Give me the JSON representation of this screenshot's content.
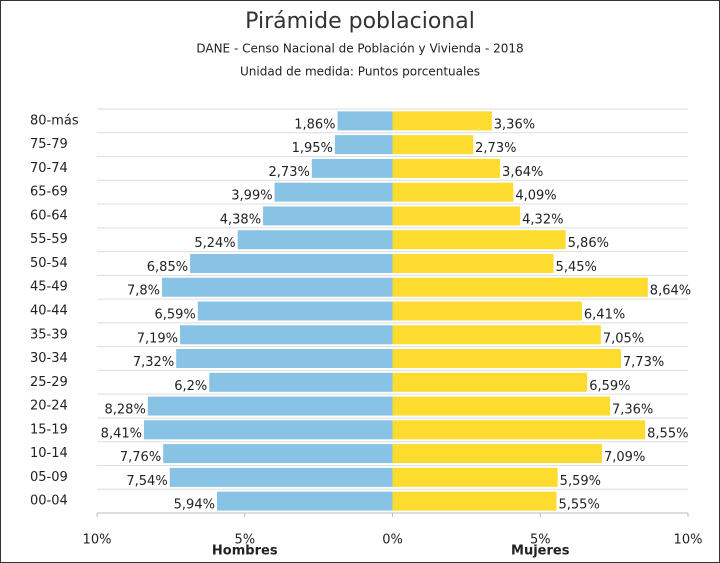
{
  "chart_data": {
    "type": "pyramid",
    "title": "Pirámide poblacional",
    "subtitle": "DANE - Censo Nacional de Población y Vivienda - 2018",
    "unit_label": "Unidad de medida: Puntos porcentuales",
    "categories": [
      "80-más",
      "75-79",
      "70-74",
      "65-69",
      "60-64",
      "55-59",
      "50-54",
      "45-49",
      "40-44",
      "35-39",
      "30-34",
      "25-29",
      "20-24",
      "15-19",
      "10-14",
      "05-09",
      "00-04"
    ],
    "series": [
      {
        "name": "Hombres",
        "color": "#88c3e5",
        "side": "left",
        "values": [
          1.86,
          1.95,
          2.73,
          3.99,
          4.38,
          5.24,
          6.85,
          7.8,
          6.59,
          7.19,
          7.32,
          6.2,
          8.28,
          8.41,
          7.76,
          7.54,
          5.94
        ],
        "value_labels": [
          "1,86%",
          "1,95%",
          "2,73%",
          "3,99%",
          "4,38%",
          "5,24%",
          "6,85%",
          "7,8%",
          "6,59%",
          "7,19%",
          "7,32%",
          "6,2%",
          "8,28%",
          "8,41%",
          "7,76%",
          "7,54%",
          "5,94%"
        ]
      },
      {
        "name": "Mujeres",
        "color": "#fddb2f",
        "side": "right",
        "values": [
          3.36,
          2.73,
          3.64,
          4.09,
          4.32,
          5.86,
          5.45,
          8.64,
          6.41,
          7.05,
          7.73,
          6.59,
          7.36,
          8.55,
          7.09,
          5.59,
          5.55
        ],
        "value_labels": [
          "3,36%",
          "2,73%",
          "3,64%",
          "4,09%",
          "4,32%",
          "5,86%",
          "5,45%",
          "8,64%",
          "6,41%",
          "7,05%",
          "7,73%",
          "6,59%",
          "7,36%",
          "8,55%",
          "7,09%",
          "5,59%",
          "5,55%"
        ]
      }
    ],
    "xlim": [
      -10,
      10
    ],
    "xticks": [
      {
        "value": -10,
        "label": "10%"
      },
      {
        "value": -5,
        "label": "5%"
      },
      {
        "value": 0,
        "label": "0%"
      },
      {
        "value": 5,
        "label": "5%"
      },
      {
        "value": 10,
        "label": "10%"
      }
    ]
  }
}
